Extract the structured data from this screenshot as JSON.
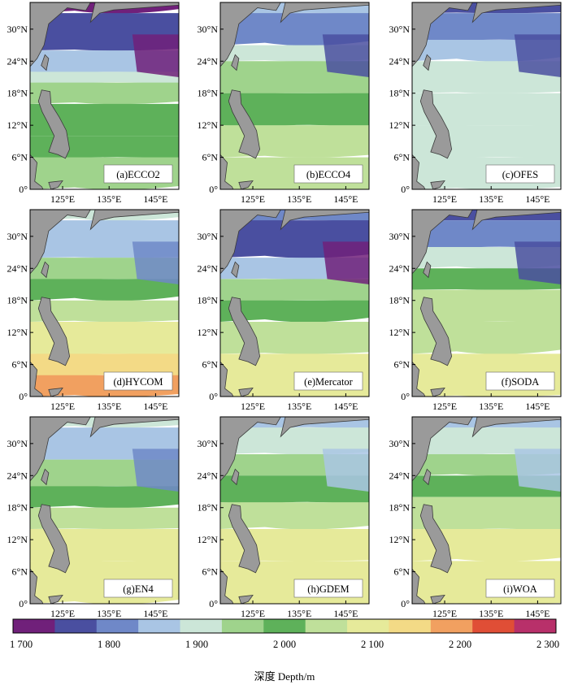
{
  "figure": {
    "lat_ticks": [
      "30°N",
      "24°N",
      "18°N",
      "12°N",
      "6°N",
      "0°"
    ],
    "lon_ticks": [
      "125°E",
      "135°E",
      "145°E"
    ],
    "panels": [
      {
        "label": "(a)ECCO2",
        "pattern": "ecco2"
      },
      {
        "label": "(b)ECCO4",
        "pattern": "ecco4"
      },
      {
        "label": "(c)OFES",
        "pattern": "ofes"
      },
      {
        "label": "(d)HYCOM",
        "pattern": "hycom"
      },
      {
        "label": "(e)Mercator",
        "pattern": "mercator"
      },
      {
        "label": "(f)SODA",
        "pattern": "soda"
      },
      {
        "label": "(g)EN4",
        "pattern": "en4"
      },
      {
        "label": "(h)GDEM",
        "pattern": "gdem"
      },
      {
        "label": "(i)WOA",
        "pattern": "woa"
      }
    ]
  },
  "colorbar": {
    "title": "深度 Depth/m",
    "tick_labels": [
      "1 700",
      "1 800",
      "1 900",
      "2 000",
      "2 100",
      "2 200",
      "2 300"
    ],
    "colors": [
      "#70207a",
      "#4a4fa0",
      "#6f88c8",
      "#a9c5e4",
      "#cce6d8",
      "#9fd38c",
      "#5eb15a",
      "#bfe09a",
      "#e6ea9a",
      "#f3da86",
      "#f1a060",
      "#e04e36",
      "#b8306a"
    ]
  },
  "colors": {
    "land": "#9a9a9a",
    "coast": "#3a3a3a"
  }
}
